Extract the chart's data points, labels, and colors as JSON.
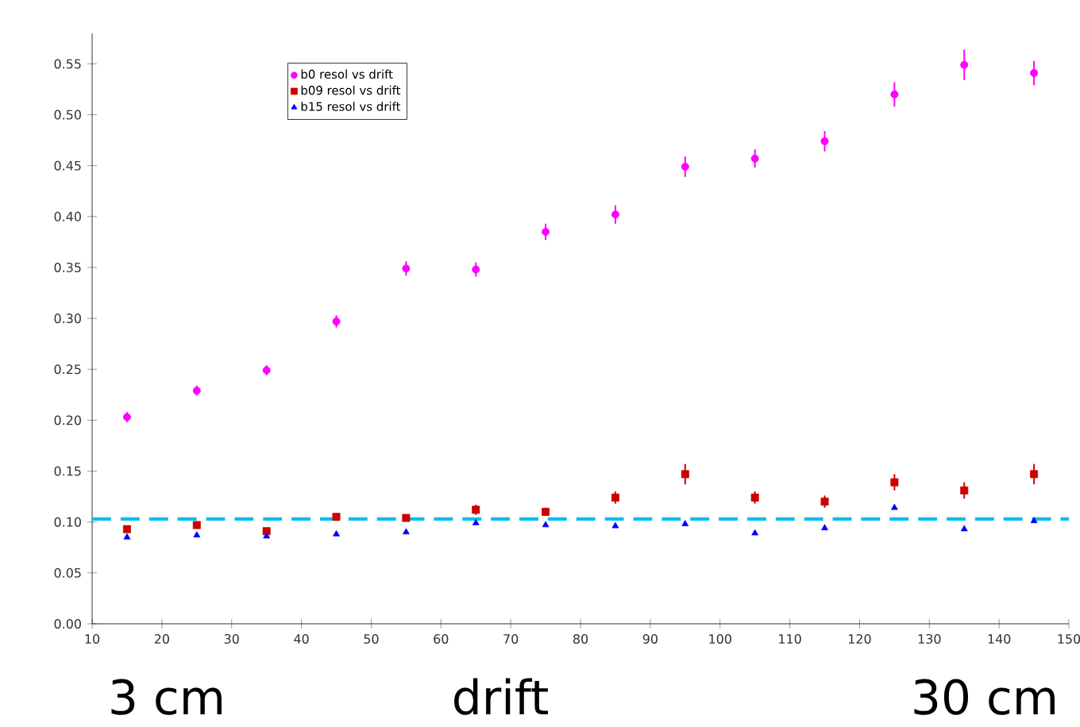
{
  "chart_data": {
    "type": "scatter",
    "x": [
      15,
      25,
      35,
      45,
      55,
      65,
      75,
      85,
      95,
      105,
      115,
      125,
      135,
      145
    ],
    "series": [
      {
        "name": "b0 resol vs drift",
        "color": "#ff00ff",
        "marker": "circle",
        "values": [
          0.203,
          0.229,
          0.249,
          0.297,
          0.349,
          0.348,
          0.385,
          0.402,
          0.449,
          0.457,
          0.474,
          0.52,
          0.549,
          0.541
        ],
        "errors": [
          0.005,
          0.005,
          0.005,
          0.006,
          0.007,
          0.007,
          0.008,
          0.009,
          0.01,
          0.009,
          0.01,
          0.012,
          0.015,
          0.012
        ]
      },
      {
        "name": "b09 resol vs drift",
        "color": "#cc0000",
        "marker": "square",
        "values": [
          0.093,
          0.097,
          0.091,
          0.105,
          0.104,
          0.112,
          0.11,
          0.124,
          0.147,
          0.124,
          0.12,
          0.139,
          0.131,
          0.147
        ],
        "errors": [
          0.003,
          0.003,
          0.003,
          0.003,
          0.003,
          0.005,
          0.004,
          0.006,
          0.01,
          0.006,
          0.006,
          0.008,
          0.008,
          0.01
        ]
      },
      {
        "name": "b15 resol vs drift",
        "color": "#0000ff",
        "marker": "triangle",
        "values": [
          0.085,
          0.087,
          0.086,
          0.088,
          0.09,
          0.099,
          0.097,
          0.096,
          0.098,
          0.089,
          0.094,
          0.114,
          0.093,
          0.101
        ]
      }
    ],
    "xlim": [
      10,
      150
    ],
    "ylim": [
      0,
      0.58
    ],
    "xticks": [
      10,
      20,
      30,
      40,
      50,
      60,
      70,
      80,
      90,
      100,
      110,
      120,
      130,
      140,
      150
    ],
    "yticks": [
      {
        "value": 0,
        "label": "0.00"
      },
      {
        "value": 0.05,
        "label": "0.05"
      },
      {
        "value": 0.1,
        "label": "0.10"
      },
      {
        "value": 0.15,
        "label": "0.15"
      },
      {
        "value": 0.2,
        "label": "0.20"
      },
      {
        "value": 0.25,
        "label": "0.25"
      },
      {
        "value": 0.3,
        "label": "0.30"
      },
      {
        "value": 0.35,
        "label": "0.35"
      },
      {
        "value": 0.4,
        "label": "0.40"
      },
      {
        "value": 0.45,
        "label": "0.45"
      },
      {
        "value": 0.5,
        "label": "0.50"
      },
      {
        "value": 0.55,
        "label": "0.55"
      }
    ],
    "ref_lines": [
      {
        "axis": "y",
        "value": 0.103,
        "color": "#00c0f0",
        "line_style": "dashed"
      }
    ],
    "annotations": [
      "3 cm",
      "drift",
      "30 cm"
    ],
    "legend": "top left",
    "grid": false
  }
}
